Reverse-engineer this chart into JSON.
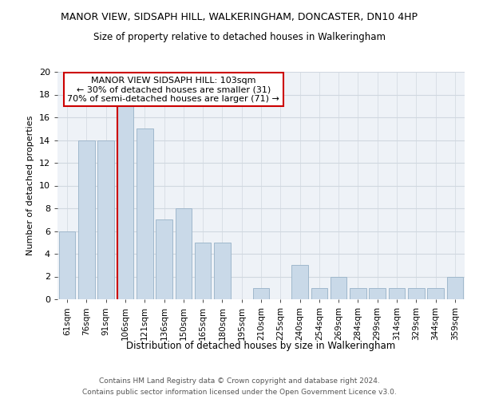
{
  "title": "MANOR VIEW, SIDSAPH HILL, WALKERINGHAM, DONCASTER, DN10 4HP",
  "subtitle": "Size of property relative to detached houses in Walkeringham",
  "xlabel": "Distribution of detached houses by size in Walkeringham",
  "ylabel": "Number of detached properties",
  "footnote1": "Contains HM Land Registry data © Crown copyright and database right 2024.",
  "footnote2": "Contains public sector information licensed under the Open Government Licence v3.0.",
  "categories": [
    "61sqm",
    "76sqm",
    "91sqm",
    "106sqm",
    "121sqm",
    "136sqm",
    "150sqm",
    "165sqm",
    "180sqm",
    "195sqm",
    "210sqm",
    "225sqm",
    "240sqm",
    "254sqm",
    "269sqm",
    "284sqm",
    "299sqm",
    "314sqm",
    "329sqm",
    "344sqm",
    "359sqm"
  ],
  "values": [
    6,
    14,
    14,
    17,
    15,
    7,
    8,
    5,
    5,
    0,
    1,
    0,
    3,
    1,
    2,
    1,
    1,
    1,
    1,
    1,
    2
  ],
  "bar_color": "#c9d9e8",
  "bar_edge_color": "#a0b8cc",
  "vline_x_index": 3,
  "vline_color": "#cc0000",
  "annotation_box_text": "MANOR VIEW SIDSAPH HILL: 103sqm\n← 30% of detached houses are smaller (31)\n70% of semi-detached houses are larger (71) →",
  "annotation_box_color": "#cc0000",
  "ylim": [
    0,
    20
  ],
  "yticks": [
    0,
    2,
    4,
    6,
    8,
    10,
    12,
    14,
    16,
    18,
    20
  ],
  "grid_color": "#d0d8e0",
  "bg_color": "#eef2f7",
  "title_fontsize": 9,
  "subtitle_fontsize": 8.5
}
